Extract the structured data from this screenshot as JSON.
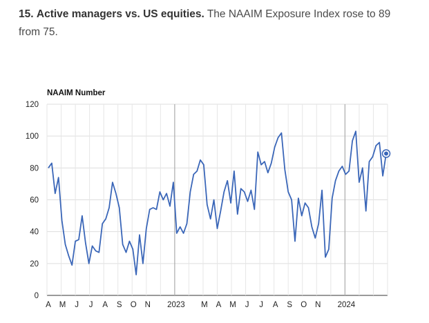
{
  "caption": {
    "number": "15.",
    "heading": "Active managers vs. US equities.",
    "body": "The NAAIM Exposure Index rose to 89 from 75."
  },
  "chart_data": {
    "type": "line",
    "title": "",
    "ylabel": "NAAIM Number",
    "xlabel": "",
    "ylim": [
      0,
      120
    ],
    "yticks": [
      0,
      20,
      40,
      60,
      80,
      100,
      120
    ],
    "x_tick_labels": [
      "A",
      "M",
      "J",
      "J",
      "A",
      "S",
      "O",
      "N",
      "2023",
      "M",
      "A",
      "M",
      "J",
      "J",
      "A",
      "S",
      "O",
      "N",
      "2024"
    ],
    "x_start": "2022-04",
    "x_end": "2024-03",
    "grid": true,
    "line_color": "#3a66b8",
    "last_point_marker": true,
    "series": [
      {
        "name": "",
        "values": [
          80,
          83,
          64,
          74,
          47,
          32,
          25,
          19,
          34,
          35,
          50,
          33,
          20,
          31,
          28,
          27,
          45,
          48,
          55,
          71,
          64,
          55,
          32,
          27,
          34,
          29,
          13,
          38,
          20,
          42,
          54,
          55,
          54,
          65,
          60,
          64,
          56,
          71,
          39,
          43,
          39,
          45,
          65,
          76,
          78,
          85,
          82,
          57,
          48,
          60,
          42,
          53,
          65,
          72,
          58,
          78,
          51,
          67,
          65,
          59,
          66,
          54,
          90,
          82,
          84,
          77,
          83,
          93,
          99,
          102,
          79,
          65,
          60,
          34,
          61,
          50,
          58,
          55,
          43,
          36,
          45,
          66,
          24,
          29,
          61,
          72,
          78,
          81,
          76,
          78,
          97,
          103,
          71,
          80,
          53,
          84,
          87,
          94,
          96,
          75,
          89
        ]
      }
    ]
  }
}
